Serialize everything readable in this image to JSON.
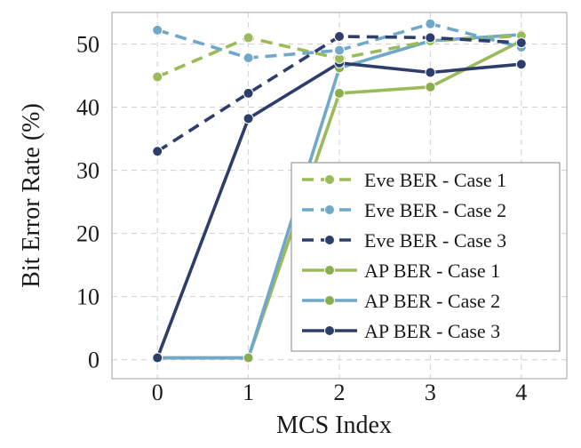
{
  "chart_data": {
    "type": "line",
    "title": "",
    "xlabel": "MCS Index",
    "ylabel": "Bit Error Rate (%)",
    "x": [
      0,
      1,
      2,
      3,
      4
    ],
    "x_tick_labels": [
      "0",
      "1",
      "2",
      "3",
      "4"
    ],
    "y_ticks": [
      0,
      10,
      20,
      30,
      40,
      50
    ],
    "y_tick_labels": [
      "0",
      "10",
      "20",
      "30",
      "40",
      "50"
    ],
    "xlim": [
      -0.5,
      4.5
    ],
    "ylim": [
      -3,
      55
    ],
    "grid": true,
    "legend_position": "lower-right",
    "series": [
      {
        "name": "Eve BER - Case 1",
        "style": "dashed",
        "color": "#9BBB59",
        "marker": "#9BBB59",
        "values": [
          44.8,
          51.0,
          47.7,
          50.5,
          51.3
        ]
      },
      {
        "name": "Eve BER - Case 2",
        "style": "dashed",
        "color": "#6FA8C8",
        "marker": "#6FA8C8",
        "values": [
          52.2,
          47.8,
          49.0,
          53.2,
          49.5
        ]
      },
      {
        "name": "Eve BER - Case 3",
        "style": "dashed",
        "color": "#2E3E6B",
        "marker": "#2E3E6B",
        "values": [
          33.0,
          42.2,
          51.2,
          51.0,
          50.2
        ]
      },
      {
        "name": "AP BER - Case 1",
        "style": "solid",
        "color": "#9BBB59",
        "marker": "#8AAE4E",
        "values": [
          0.3,
          0.3,
          42.2,
          43.2,
          50.5
        ]
      },
      {
        "name": "AP BER - Case 2",
        "style": "solid",
        "color": "#6FA8C8",
        "marker": "#8AAE4E",
        "values": [
          0.3,
          0.3,
          46.2,
          50.5,
          51.5
        ]
      },
      {
        "name": "AP BER - Case 3",
        "style": "solid",
        "color": "#2E3E6B",
        "marker": "#2E3E6B",
        "values": [
          0.3,
          38.2,
          47.0,
          45.5,
          46.8
        ]
      }
    ]
  }
}
